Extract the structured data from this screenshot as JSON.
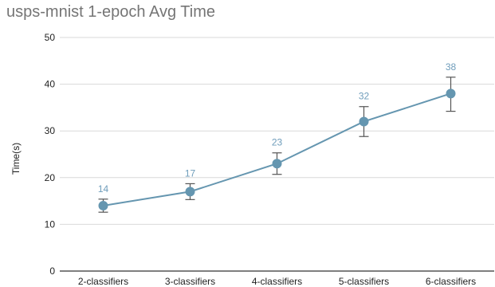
{
  "chart_data": {
    "type": "line",
    "title": "usps-mnist 1-epoch Avg Time",
    "xlabel": "",
    "ylabel": "Time(s)",
    "categories": [
      "2-classifiers",
      "3-classifiers",
      "4-classifiers",
      "5-classifiers",
      "6-classifiers"
    ],
    "series": [
      {
        "values": [
          14,
          17,
          23,
          32,
          38
        ],
        "error_low": [
          12.6,
          15.3,
          20.7,
          28.8,
          34.2
        ],
        "error_high": [
          15.4,
          18.7,
          25.3,
          35.2,
          41.5
        ]
      }
    ],
    "data_labels": [
      "14",
      "17",
      "23",
      "32",
      "38"
    ],
    "ylim": [
      0,
      50
    ],
    "yticks": [
      0,
      10,
      20,
      30,
      40,
      50
    ],
    "ytick_labels": [
      "0",
      "10",
      "20",
      "30",
      "40",
      "50"
    ],
    "grid": true,
    "legend": "none",
    "colors": {
      "series": "#6596b0",
      "label": "#6f9dbb",
      "grid": "#d9d9d9",
      "axis": "#333333",
      "error": "#555555"
    }
  }
}
